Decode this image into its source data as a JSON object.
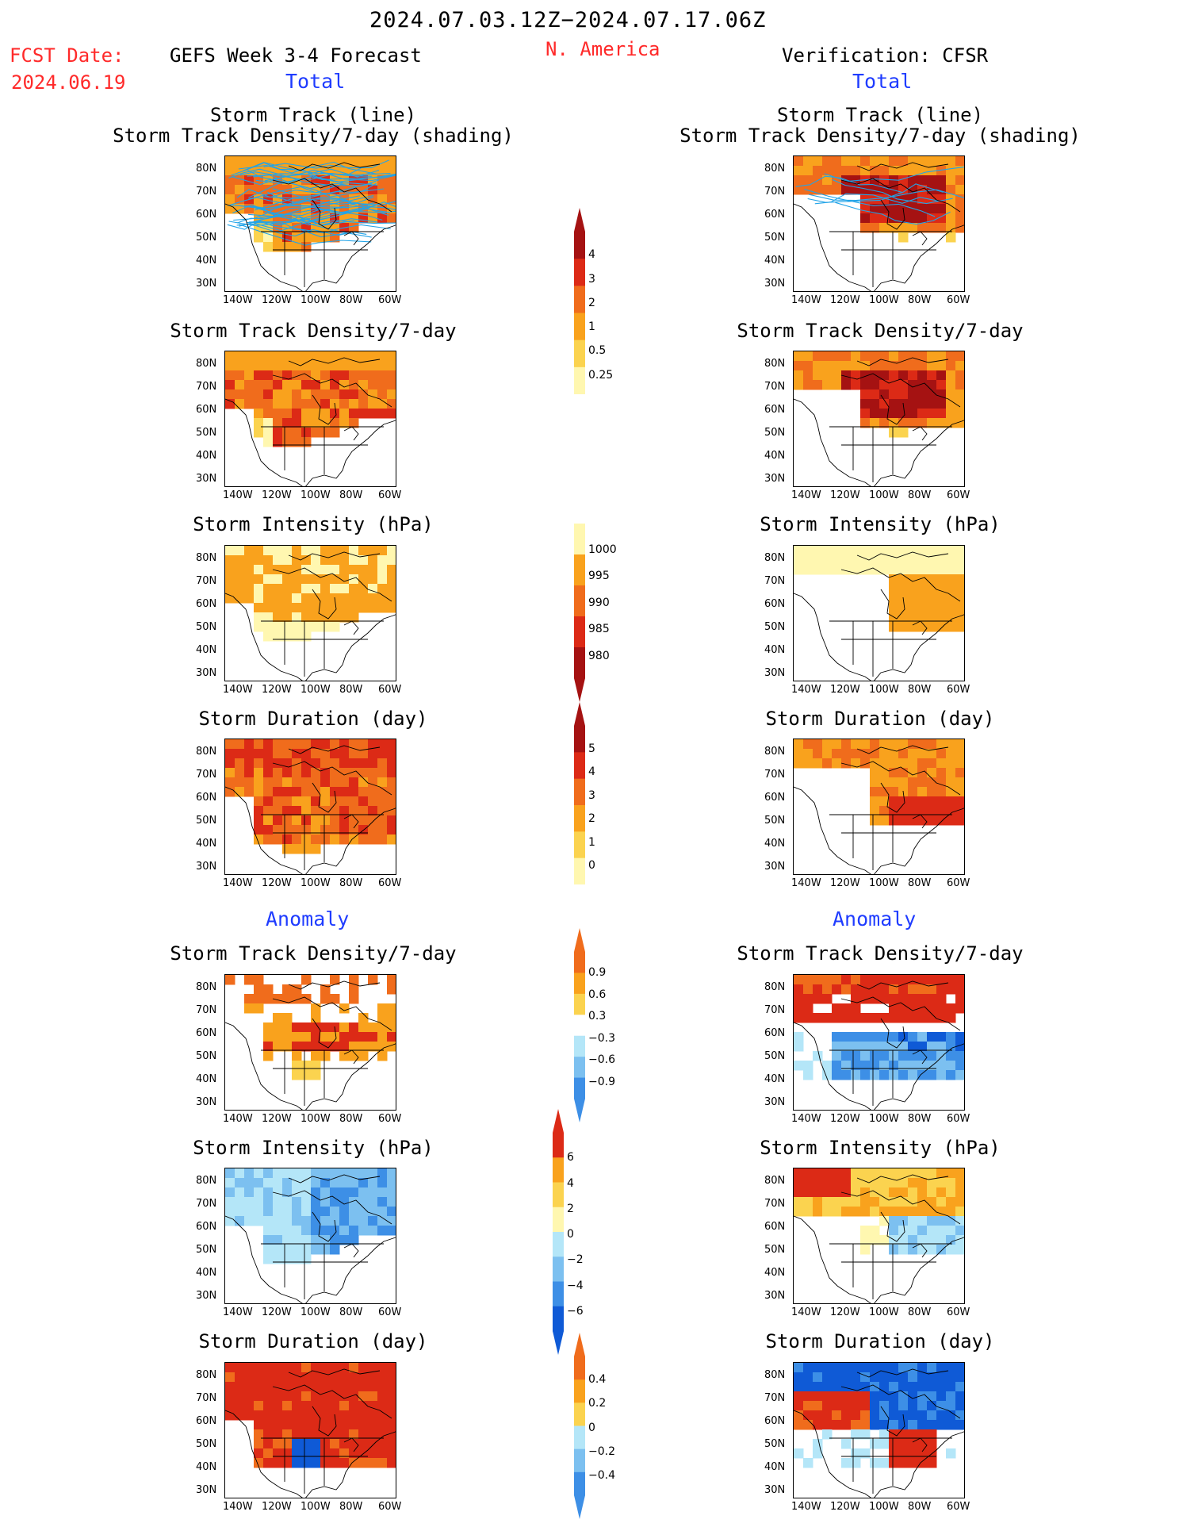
{
  "header": {
    "date_range": "2024.07.03.12Z−2024.07.17.06Z",
    "region": "N. America",
    "fcst_date_label": "FCST Date:",
    "fcst_date_value": "2024.06.19",
    "model_label": "GEFS Week 3-4 Forecast",
    "verification_label": "Verification: CFSR",
    "total_left": "Total",
    "total_right": "Total",
    "anomaly_left": "Anomaly",
    "anomaly_right": "Anomaly"
  },
  "panel_titles": {
    "track_line": "Storm Track (line)",
    "track_shading": "Storm Track Density/7-day (shading)",
    "density": "Storm Track Density/7-day",
    "intensity": "Storm Intensity (hPa)",
    "duration": "Storm Duration (day)"
  },
  "axes": {
    "lat_labels": [
      "80N",
      "70N",
      "60N",
      "50N",
      "40N",
      "30N"
    ],
    "lon_labels": [
      "140W",
      "120W",
      "100W",
      "80W",
      "60W"
    ]
  },
  "colorbars": {
    "density_total": [
      "4",
      "3",
      "2",
      "1",
      "0.5",
      "0.25"
    ],
    "intensity_total": [
      "1000",
      "995",
      "990",
      "985",
      "980"
    ],
    "duration_total": [
      "5",
      "4",
      "3",
      "2",
      "1",
      "0"
    ],
    "density_anom": [
      "0.9",
      "0.6",
      "0.3",
      "−0.3",
      "−0.6",
      "−0.9"
    ],
    "intensity_anom": [
      "6",
      "4",
      "2",
      "0",
      "−2",
      "−4",
      "−6"
    ],
    "duration_anom": [
      "0.4",
      "0.2",
      "0",
      "−0.2",
      "−0.4"
    ]
  },
  "colors": {
    "pale_yellow": "#fff7b0",
    "yellow": "#fbd34f",
    "light_orange": "#f9a21d",
    "orange": "#f06c1c",
    "red": "#dc2a16",
    "dark_red": "#a51212",
    "light_blue": "#b4e6f8",
    "mid_blue": "#7cc0f0",
    "blue": "#3d8fe6",
    "dark_blue": "#0f5ad6",
    "track_line": "#22a4e8"
  }
}
